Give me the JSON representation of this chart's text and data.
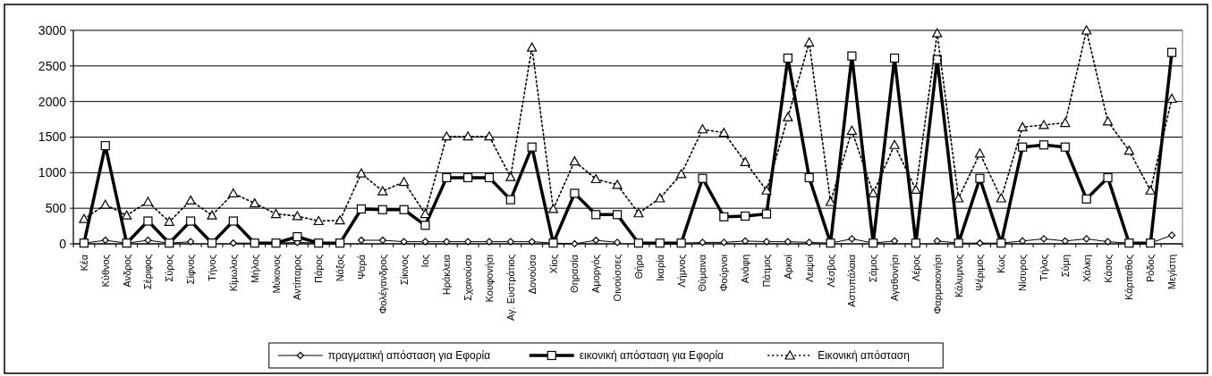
{
  "chart_data": {
    "type": "line",
    "categories": [
      "Κέα",
      "Κύθνος",
      "Ανδρος",
      "Σέριφος",
      "Σύρος",
      "Σίφνος",
      "Τήνος",
      "Κίμωλος",
      "Μήλος",
      "Μύκονος",
      "Αντίπαρος",
      "Πάρος",
      "Νάξος",
      "Ψαρά",
      "Φολέγανδρος",
      "Σίκινος",
      "Ιος",
      "Ηράκλεια",
      "Σχοινούσα",
      "Κουφονήσι",
      "Αγ. Ευστράτιος",
      "Δονούσα",
      "Χίος",
      "Θηρασία",
      "Αμοργός",
      "Οινούσσες",
      "Θήρα",
      "Ικαρία",
      "Λήμνος",
      "Θύμαινα",
      "Φούρνοι",
      "Ανάφη",
      "Πάτμος",
      "Αρκοί",
      "Λειψοί",
      "Λέσβος",
      "Αστυπάλαια",
      "Σάμος",
      "Αγαθονήσι",
      "Λέρος",
      "Φαρμακονήσι",
      "Κάλυμνος",
      "Ψέριμος",
      "Κως",
      "Νίσυρος",
      "Τήλος",
      "Σύμη",
      "Χάλκη",
      "Κάσος",
      "Κάρπαθος",
      "Ρόδος",
      "Μεγίστη"
    ],
    "series": [
      {
        "name": "πραγματική απόσταση για Εφορία",
        "color": "#000000",
        "marker": "diamond",
        "line_style": "solid",
        "values": [
          10,
          50,
          10,
          50,
          10,
          30,
          null,
          10,
          10,
          10,
          20,
          10,
          null,
          50,
          50,
          30,
          30,
          30,
          30,
          30,
          30,
          30,
          10,
          0,
          50,
          20,
          null,
          10,
          10,
          20,
          20,
          40,
          30,
          30,
          20,
          10,
          70,
          10,
          40,
          null,
          40,
          10,
          10,
          10,
          40,
          70,
          40,
          70,
          30,
          10,
          10,
          120
        ]
      },
      {
        "name": "εικονική απόσταση για Εφορία",
        "color": "#000000",
        "marker": "square",
        "line_style": "solid",
        "values": [
          10,
          1380,
          10,
          320,
          10,
          320,
          10,
          320,
          10,
          10,
          100,
          10,
          10,
          490,
          480,
          480,
          260,
          930,
          930,
          930,
          620,
          1360,
          10,
          710,
          410,
          410,
          10,
          10,
          10,
          920,
          380,
          390,
          420,
          2610,
          930,
          10,
          2640,
          10,
          2610,
          10,
          2590,
          10,
          920,
          10,
          1360,
          1390,
          1360,
          630,
          930,
          10,
          10,
          2690
        ]
      },
      {
        "name": "Εικονική απόσταση",
        "color": "#000000",
        "marker": "triangle",
        "line_style": "dotted",
        "values": [
          350,
          550,
          400,
          590,
          310,
          610,
          400,
          710,
          570,
          420,
          390,
          320,
          330,
          990,
          740,
          870,
          420,
          1510,
          1510,
          1510,
          940,
          2760,
          490,
          1160,
          910,
          830,
          430,
          640,
          980,
          1610,
          1560,
          1150,
          750,
          1780,
          2830,
          590,
          1590,
          710,
          1390,
          760,
          2960,
          640,
          1270,
          640,
          1640,
          1670,
          1700,
          3000,
          1720,
          1310,
          750,
          2040
        ]
      }
    ],
    "ylim": [
      0,
      3000
    ],
    "yticks": [
      0,
      500,
      1000,
      1500,
      2000,
      2500,
      3000
    ],
    "grid": "y",
    "legend": "bottom"
  }
}
